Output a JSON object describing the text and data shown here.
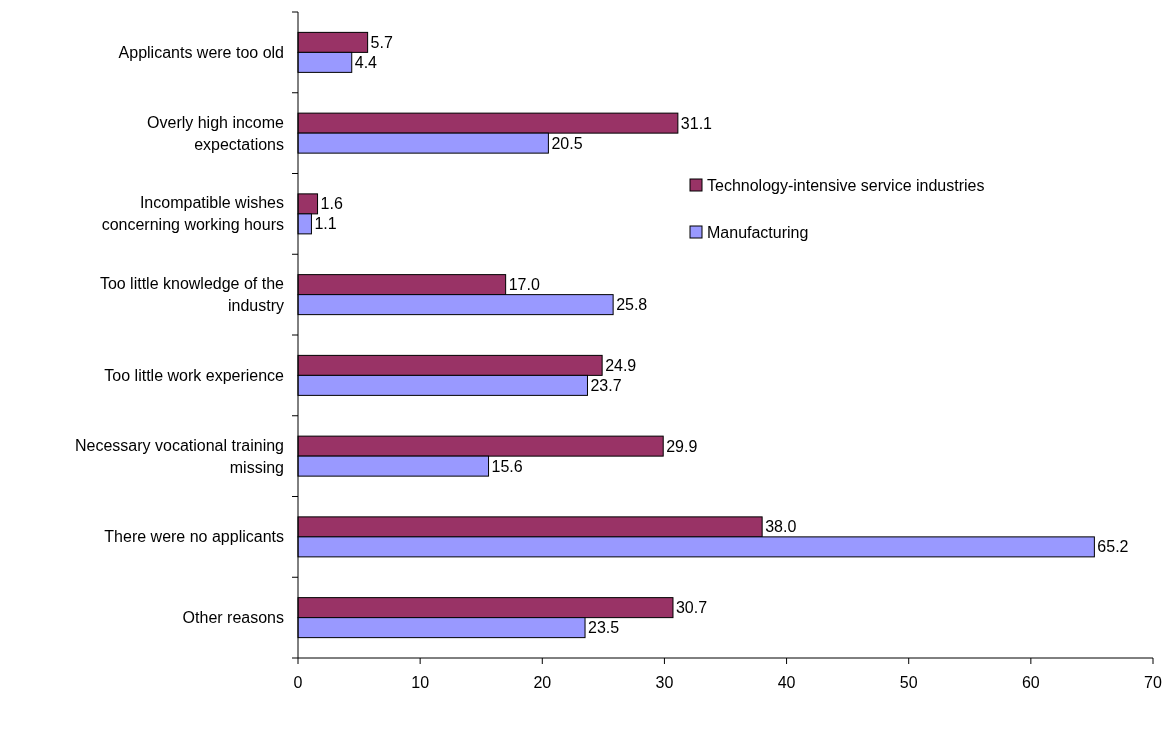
{
  "chart_data": {
    "type": "bar",
    "orientation": "horizontal",
    "categories": [
      "Applicants were too old",
      "Overly high income expectations",
      "Incompatible wishes concerning working hours",
      "Too little knowledge of the industry",
      "Too little work experience",
      "Necessary vocational training missing",
      "There were no applicants",
      "Other reasons"
    ],
    "series": [
      {
        "name": "Technology-intensive service industries",
        "color": "#993366",
        "values": [
          5.7,
          31.1,
          1.6,
          17.0,
          24.9,
          29.9,
          38.0,
          30.7
        ],
        "value_labels": [
          "5.7",
          "31.1",
          "1.6",
          "17.0",
          "24.9",
          "29.9",
          "38.0",
          "30.7"
        ]
      },
      {
        "name": "Manufacturing",
        "color": "#9999ff",
        "values": [
          4.4,
          20.5,
          1.1,
          25.8,
          23.7,
          15.6,
          65.2,
          23.5
        ],
        "value_labels": [
          "4.4",
          "20.5",
          "1.1",
          "25.8",
          "23.7",
          "15.6",
          "65.2",
          "23.5"
        ]
      }
    ],
    "xlim": [
      0,
      70
    ],
    "xticks": [
      0,
      10,
      20,
      30,
      40,
      50,
      60,
      70
    ],
    "grid": false,
    "legend": "right"
  }
}
